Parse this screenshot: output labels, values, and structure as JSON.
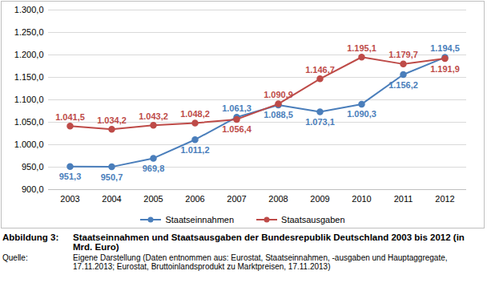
{
  "chart_data": {
    "type": "line",
    "figure_label": "Abbildung 3:",
    "title": "Staatseinnahmen und Staatsausgaben der Bundesrepublik Deutschland 2003 bis 2012 (in Mrd. Euro)",
    "source_label": "Quelle:",
    "source": "Eigene Darstellung (Daten entnommen aus: Eurostat, Staatseinnahmen, -ausgaben und Hauptaggregate, 17.11.2013; Eurostat, Bruttoinlandsprodukt zu Marktpreisen, 17.11.2013)",
    "categories": [
      "2003",
      "2004",
      "2005",
      "2006",
      "2007",
      "2008",
      "2009",
      "2010",
      "2011",
      "2012"
    ],
    "series": [
      {
        "name": "Staatseinnahmen",
        "color": "#4a7ebb",
        "marker": "circle",
        "values": [
          951.3,
          950.7,
          969.8,
          1011.2,
          1061.3,
          1088.5,
          1073.1,
          1090.3,
          1156.2,
          1194.5
        ],
        "value_labels": [
          "951,3",
          "950,7",
          "969,8",
          "1.011,2",
          "1.061,3",
          "1.088,5",
          "1.073,1",
          "1.090,3",
          "1.156,2",
          "1.194,5"
        ]
      },
      {
        "name": "Staatsausgaben",
        "color": "#be4b48",
        "marker": "circle",
        "values": [
          1041.5,
          1034.2,
          1043.2,
          1048.2,
          1056.4,
          1090.9,
          1146.7,
          1195.1,
          1179.7,
          1191.9
        ],
        "value_labels": [
          "1.041,5",
          "1.034,2",
          "1.043,2",
          "1.048,2",
          "1.056,4",
          "1.090,9",
          "1.146,7",
          "1.195,1",
          "1.179,7",
          "1.191,9"
        ]
      }
    ],
    "ylim": [
      900,
      1300
    ],
    "yticks": [
      {
        "value": 900,
        "label": "900,0"
      },
      {
        "value": 950,
        "label": "950,0"
      },
      {
        "value": 1000,
        "label": "1.000,0"
      },
      {
        "value": 1050,
        "label": "1.050,0"
      },
      {
        "value": 1100,
        "label": "1.100,0"
      },
      {
        "value": 1150,
        "label": "1.150,0"
      },
      {
        "value": 1200,
        "label": "1.200,0"
      },
      {
        "value": 1250,
        "label": "1.250,0"
      },
      {
        "value": 1300,
        "label": "1.300,0"
      }
    ],
    "grid": true,
    "data_labels": true,
    "legend": "bottom"
  }
}
